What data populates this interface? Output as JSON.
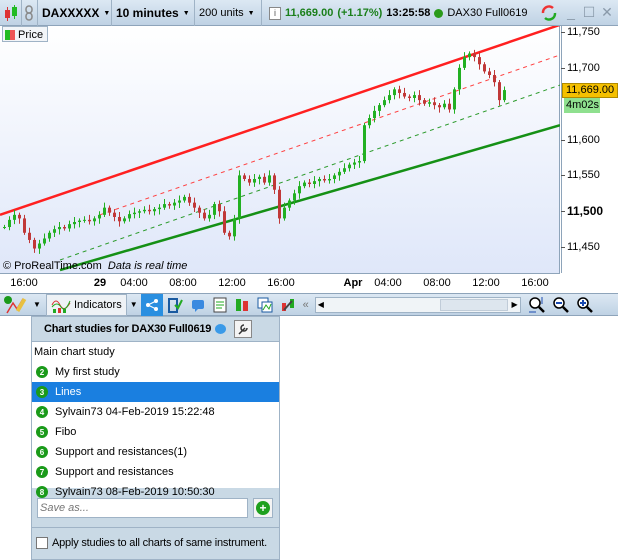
{
  "topbar": {
    "ticker": "DAXXXXX",
    "timeframe": "10 minutes",
    "units": "200 units",
    "price": "11,669.00",
    "change": "(+1.17%)",
    "time": "13:25:58",
    "instrument": "DAX30 Full0619"
  },
  "chart": {
    "legend": "Price",
    "watermark": "© ProRealTime.com",
    "status": "Data is real time",
    "price_ticks": [
      {
        "v": 11750,
        "t": "11,750"
      },
      {
        "v": 11700,
        "t": "11,700"
      },
      {
        "v": 11600,
        "t": "11,600"
      },
      {
        "v": 11550,
        "t": "11,550"
      },
      {
        "v": 11500,
        "t": "11,500"
      },
      {
        "v": 11450,
        "t": "11,450"
      }
    ],
    "current_price": "11,669.00",
    "countdown": "4m02s",
    "time_ticks": [
      "16:00",
      "29",
      "04:00",
      "08:00",
      "12:00",
      "16:00",
      "Apr",
      "04:00",
      "08:00",
      "12:00",
      "16:00"
    ],
    "closes": [
      11478,
      11488,
      11495,
      11490,
      11470,
      11460,
      11448,
      11455,
      11462,
      11470,
      11475,
      11478,
      11476,
      11482,
      11485,
      11487,
      11488,
      11486,
      11490,
      11495,
      11505,
      11498,
      11492,
      11486,
      11490,
      11496,
      11498,
      11500,
      11502,
      11500,
      11503,
      11505,
      11510,
      11508,
      11512,
      11515,
      11520,
      11512,
      11505,
      11498,
      11490,
      11495,
      11510,
      11500,
      11470,
      11465,
      11490,
      11550,
      11545,
      11540,
      11545,
      11548,
      11540,
      11550,
      11530,
      11490,
      11505,
      11515,
      11525,
      11535,
      11540,
      11538,
      11542,
      11545,
      11543,
      11545,
      11550,
      11555,
      11560,
      11565,
      11568,
      11570,
      11620,
      11630,
      11640,
      11648,
      11655,
      11662,
      11670,
      11665,
      11660,
      11658,
      11662,
      11655,
      11650,
      11652,
      11648,
      11645,
      11650,
      11642,
      11670,
      11700,
      11715,
      11720,
      11715,
      11705,
      11695,
      11690,
      11680,
      11655,
      11669
    ],
    "trend_lines": [
      {
        "name": "red-upper-line",
        "color": "#ff2020",
        "dashed": false,
        "from": 11495,
        "to": 11760
      },
      {
        "name": "red-dashed-line",
        "color": "#ff4040",
        "dashed": true,
        "from": 11495,
        "to": 11718
      },
      {
        "name": "green-dashed-line",
        "color": "#2a9a2a",
        "dashed": true,
        "from": 11432,
        "to": 11676
      },
      {
        "name": "green-lower-line",
        "color": "#159015",
        "dashed": false,
        "from": 11418,
        "to": 11620
      }
    ],
    "colors": {
      "up": "#22b022",
      "down": "#c03838"
    }
  },
  "toolbar": {
    "indicators": "Indicators"
  },
  "studies": {
    "title": "Chart studies for DAX30 Full0619",
    "main": "Main chart study",
    "items": [
      {
        "n": "2",
        "label": "My first study"
      },
      {
        "n": "3",
        "label": "Lines"
      },
      {
        "n": "4",
        "label": "Sylvain73 04-Feb-2019 15:22:48"
      },
      {
        "n": "5",
        "label": "Fibo"
      },
      {
        "n": "6",
        "label": "Support and resistances(1)"
      },
      {
        "n": "7",
        "label": "Support and resistances"
      },
      {
        "n": "8",
        "label": "Sylvain73 08-Feb-2019 10:50:30"
      }
    ],
    "selected": "Lines",
    "save_placeholder": "Save as...",
    "apply_label": "Apply studies to all charts of same instrument."
  }
}
